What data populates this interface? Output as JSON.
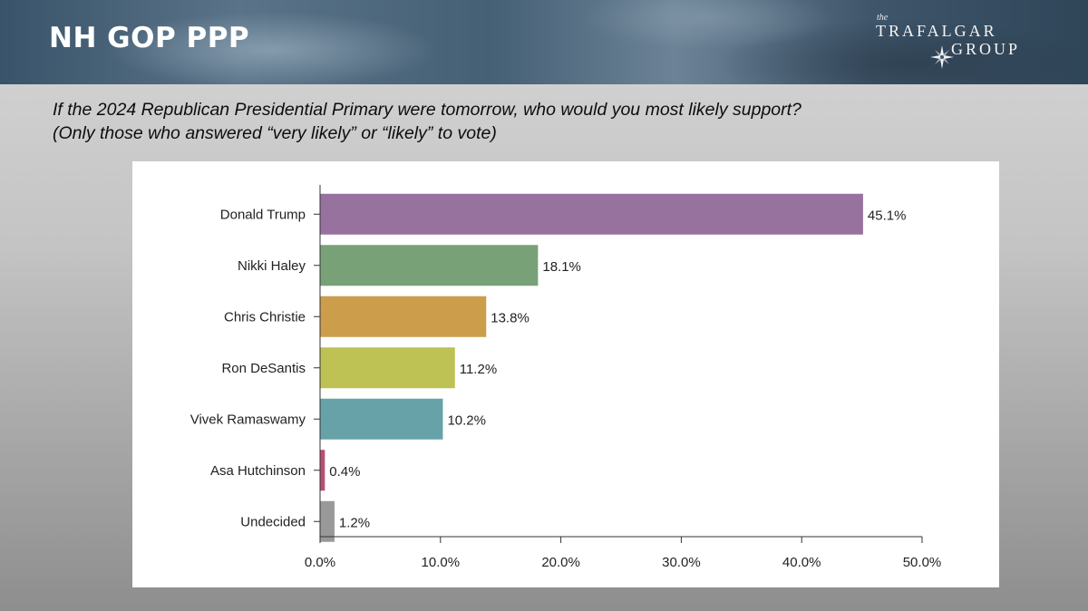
{
  "header": {
    "title": "NH GOP PPP",
    "logo": {
      "the": "the",
      "line1": "TRAFALGAR",
      "line2": "GROUP",
      "icon": "compass-star-icon"
    }
  },
  "question": {
    "line1": "If the 2024 Republican Presidential Primary were tomorrow, who would you most likely support?",
    "line2": "(Only those who answered “very likely” or “likely” to vote)"
  },
  "chart_data": {
    "type": "bar",
    "orientation": "horizontal",
    "categories": [
      "Donald Trump",
      "Nikki Haley",
      "Chris Christie",
      "Ron DeSantis",
      "Vivek Ramaswamy",
      "Asa Hutchinson",
      "Undecided"
    ],
    "values": [
      45.1,
      18.1,
      13.8,
      11.2,
      10.2,
      0.4,
      1.2
    ],
    "value_labels": [
      "45.1%",
      "18.1%",
      "13.8%",
      "11.2%",
      "10.2%",
      "0.4%",
      "1.2%"
    ],
    "colors": [
      "#98729f",
      "#78a178",
      "#cc9d4b",
      "#bec153",
      "#67a2a9",
      "#b84f76",
      "#999999"
    ],
    "xlim": [
      0,
      50
    ],
    "x_ticks": [
      0,
      10,
      20,
      30,
      40,
      50
    ],
    "x_tick_labels": [
      "0.0%",
      "10.0%",
      "20.0%",
      "30.0%",
      "40.0%",
      "50.0%"
    ],
    "title": "",
    "xlabel": "",
    "ylabel": "",
    "grid": false,
    "legend": "none"
  }
}
